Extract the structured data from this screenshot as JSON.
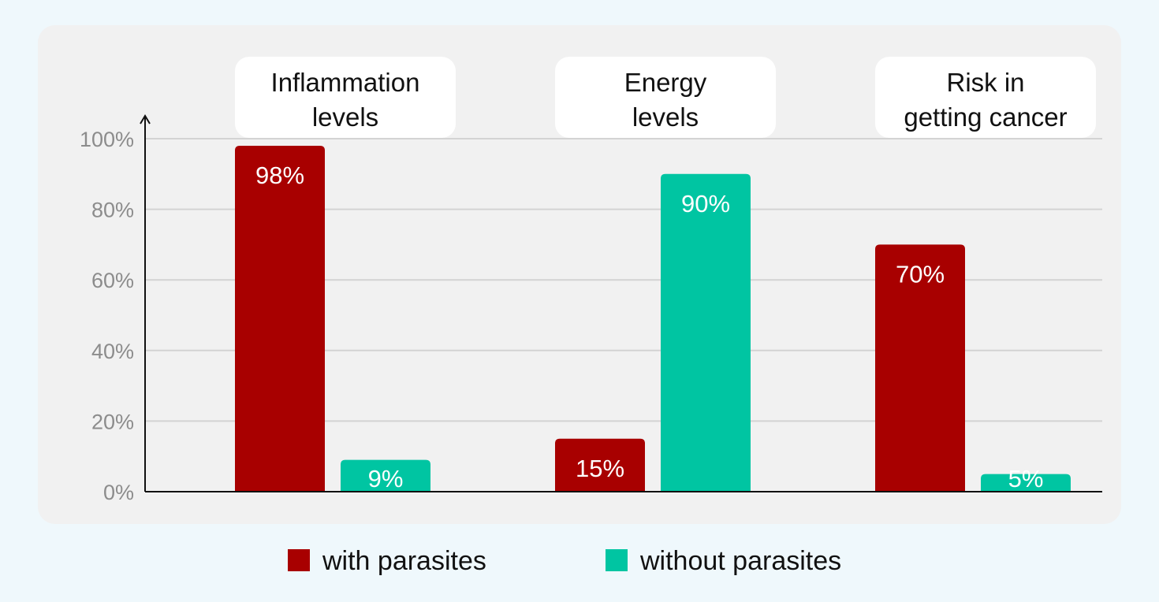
{
  "chart_data": {
    "type": "bar",
    "categories": [
      [
        "Inflammation",
        "levels"
      ],
      [
        "Energy",
        "levels"
      ],
      [
        "Risk in",
        "getting cancer"
      ]
    ],
    "series": [
      {
        "name": "with parasites",
        "color": "#a80000",
        "values": [
          98,
          15,
          70
        ],
        "labels": [
          "98%",
          "15%",
          "70%"
        ]
      },
      {
        "name": "without parasites",
        "color": "#00c5a2",
        "values": [
          9,
          90,
          5
        ],
        "labels": [
          "9%",
          "90%",
          "5%"
        ]
      }
    ],
    "yticks": [
      "100%",
      "80%",
      "60%",
      "40%",
      "20%",
      "0%"
    ],
    "ytick_values": [
      100,
      80,
      60,
      40,
      20,
      0
    ],
    "ylim": [
      0,
      104
    ],
    "grid": true,
    "legend_position": "bottom",
    "title": "",
    "xlabel": "",
    "ylabel": ""
  }
}
